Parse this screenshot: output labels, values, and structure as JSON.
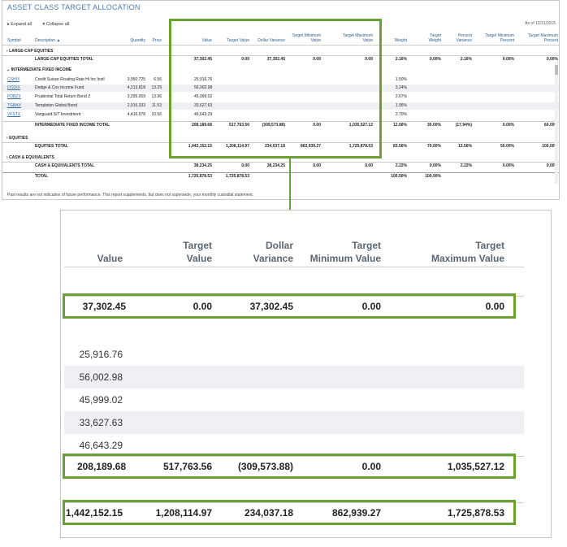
{
  "report": {
    "title": "ASSET CLASS TARGET ALLOCATION",
    "as_of": "As of 12/31/2015",
    "expand_all": "Expand all",
    "collapse_all": "Collapse all",
    "columns": [
      "Symbol",
      "Description",
      "Quantity",
      "Price",
      "Value",
      "Target Value",
      "Dollar Variance",
      "Target Minimum Value",
      "Target Maximum Value",
      "Weight",
      "Target Weight",
      "Percent Variance",
      "Target Minimum Percent",
      "Target Maximum Percent"
    ],
    "groups": {
      "large_cap": "LARGE-CAP EQUITIES",
      "fixed_income": "INTERMEDIATE FIXED INCOME",
      "equities": "EQUITIES",
      "cash": "CASH & EQUIVALENTS"
    },
    "rows": {
      "large_cap_total": {
        "desc": "LARGE-CAP EQUITIES TOTAL",
        "value": "37,302.45",
        "tval": "0.00",
        "dvar": "37,302.45",
        "tmin": "0.00",
        "tmax": "0.00",
        "weight": "2.16%",
        "tweight": "0.00%",
        "pvar": "2.16%",
        "tminp": "0.00%",
        "tmaxp": "0.00%"
      },
      "holdings": [
        {
          "sym": "CSHIX",
          "desc": "Credit Suisse Floating Rate Hi Inc Instl",
          "qty": "3,950.725",
          "price": "6.56",
          "value": "25,916.76",
          "weight": "1.50%"
        },
        {
          "sym": "DODIX",
          "desc": "Dodge & Cox Income Fund",
          "qty": "4,213.818",
          "price": "13.29",
          "value": "56,002.98",
          "weight": "3.24%"
        },
        {
          "sym": "PDBZX",
          "desc": "Prudential Total Return Bond Z",
          "qty": "3,295.059",
          "price": "13.96",
          "value": "45,999.02",
          "weight": "2.67%"
        },
        {
          "sym": "TGBAX",
          "desc": "Templeton Global Bond",
          "qty": "2,916.333",
          "price": "11.53",
          "value": "33,627.63",
          "weight": "1.95%"
        },
        {
          "sym": "VFSTX",
          "desc": "Vanguard S/T Investment",
          "qty": "4,416.978",
          "price": "10.56",
          "value": "46,643.29",
          "weight": "2.70%"
        }
      ],
      "fixed_total": {
        "desc": "INTERMEDIATE FIXED INCOME TOTAL",
        "value": "208,189.68",
        "tval": "517,763.56",
        "dvar": "(309,573.88)",
        "tmin": "0.00",
        "tmax": "1,035,527.12",
        "weight": "12.06%",
        "tweight": "30.00%",
        "pvar": "(17.94%)",
        "tminp": "0.00%",
        "tmaxp": "60.00%"
      },
      "equities_total": {
        "desc": "EQUITIES TOTAL",
        "value": "1,442,152.15",
        "tval": "1,208,114.97",
        "dvar": "234,037.18",
        "tmin": "862,939.27",
        "tmax": "1,725,878.53",
        "weight": "83.56%",
        "tweight": "70.00%",
        "pvar": "13.56%",
        "tminp": "50.00%",
        "tmaxp": "100.00%"
      },
      "cash_total": {
        "desc": "CASH & EQUIVALENTS TOTAL",
        "value": "38,234.25",
        "tval": "0.00",
        "dvar": "38,234.25",
        "tmin": "0.00",
        "tmax": "0.00",
        "weight": "2.22%",
        "tweight": "0.00%",
        "pvar": "2.22%",
        "tminp": "0.00%",
        "tmaxp": "0.00%"
      },
      "total": {
        "desc": "TOTAL",
        "value": "1,725,878.53",
        "tval": "1,725,878.53",
        "weight": "100.00%",
        "tweight": "100.00%"
      }
    },
    "footer": "Past results are not indicative of future performance. This report supplements, but does not supersede, your monthly custodial statement."
  },
  "zoom": {
    "headers": {
      "value": "Value",
      "tval_1": "Target",
      "tval_2": "Value",
      "dvar_1": "Dollar",
      "dvar_2": "Variance",
      "tmin_1": "Target",
      "tmin_2": "Minimum Value",
      "tmax_1": "Target",
      "tmax_2": "Maximum Value"
    }
  },
  "colors": {
    "highlight": "#6aa232",
    "header_text": "#2f5c8a",
    "row_shade": "#eef0f3"
  }
}
